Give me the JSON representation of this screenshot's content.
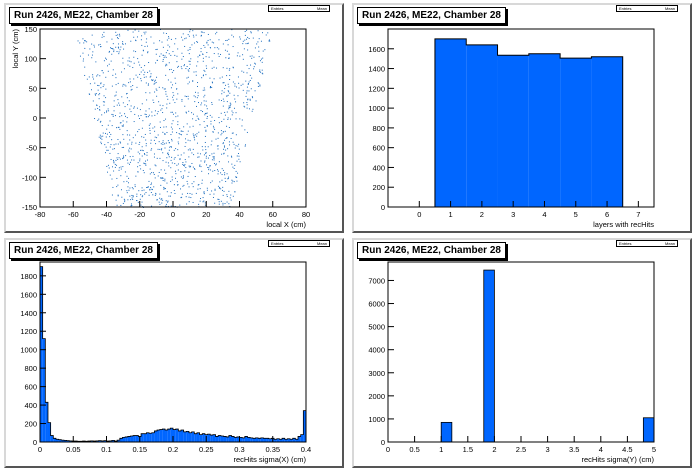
{
  "colors": {
    "fill": "#0066ff",
    "scatter": "#1f6fbf"
  },
  "charts": [
    {
      "title": "Run 2426, ME22, Chamber 28",
      "stat_left": "Entries",
      "stat_right": "Mean"
    },
    {
      "title": "Run 2426, ME22, Chamber 28",
      "stat_left": "Entries",
      "stat_right": "Mean"
    },
    {
      "title": "Run 2426, ME22, Chamber 28",
      "stat_left": "Entries",
      "stat_right": "Mean"
    },
    {
      "title": "Run 2426, ME22, Chamber 28",
      "stat_left": "Entries",
      "stat_right": "Mean"
    }
  ],
  "chart_data": [
    {
      "type": "scatter",
      "title": "Run 2426, ME22, Chamber 28",
      "xlabel": "local X (cm)",
      "ylabel": "local Y (cm)",
      "xlim": [
        -80,
        80
      ],
      "ylim": [
        -150,
        150
      ],
      "xticks": [
        -80,
        -60,
        -40,
        -20,
        0,
        20,
        40,
        60,
        80
      ],
      "yticks": [
        -150,
        -100,
        -50,
        0,
        50,
        100,
        150
      ],
      "region": {
        "y": [
          -150,
          150
        ],
        "xmin_at_ymin": -35,
        "xmax_at_ymin": 35,
        "xmin_at_ymax": -60,
        "xmax_at_ymax": 60
      },
      "points": 1400
    },
    {
      "type": "bar",
      "title": "Run 2426, ME22, Chamber 28",
      "xlabel": "layers with recHits",
      "ylabel": "",
      "xlim": [
        -1,
        7.5
      ],
      "ylim": [
        0,
        1800
      ],
      "xticks": [
        0,
        1,
        2,
        3,
        4,
        5,
        6,
        7
      ],
      "yticks": [
        0,
        200,
        400,
        600,
        800,
        1000,
        1200,
        1400,
        1600
      ],
      "categories": [
        1,
        2,
        3,
        4,
        5,
        6
      ],
      "values": [
        1700,
        1640,
        1535,
        1550,
        1505,
        1520
      ]
    },
    {
      "type": "bar",
      "title": "Run 2426, ME22, Chamber 28",
      "xlabel": "recHits sigma(X) (cm)",
      "ylabel": "",
      "xlim": [
        0,
        0.4
      ],
      "ylim": [
        0,
        1950
      ],
      "xticks": [
        0,
        0.05,
        0.1,
        0.15,
        0.2,
        0.25,
        0.3,
        0.35,
        0.4
      ],
      "yticks": [
        0,
        200,
        400,
        600,
        800,
        1000,
        1200,
        1400,
        1600,
        1800
      ],
      "bin_width": 0.004,
      "values": [
        1900,
        1120,
        430,
        210,
        70,
        40,
        30,
        25,
        20,
        18,
        15,
        12,
        10,
        10,
        8,
        8,
        10,
        8,
        10,
        12,
        10,
        12,
        15,
        12,
        15,
        10,
        12,
        18,
        10,
        20,
        40,
        50,
        55,
        60,
        65,
        70,
        70,
        60,
        90,
        90,
        100,
        95,
        100,
        120,
        130,
        135,
        140,
        130,
        140,
        150,
        135,
        140,
        120,
        130,
        110,
        115,
        100,
        110,
        90,
        100,
        80,
        90,
        80,
        85,
        75,
        80,
        60,
        70,
        65,
        60,
        55,
        70,
        60,
        50,
        55,
        50,
        45,
        60,
        50,
        45,
        40,
        45,
        40,
        45,
        40,
        40,
        35,
        40,
        30,
        35,
        30,
        40,
        30,
        35,
        30,
        40,
        30,
        60,
        80,
        340
      ]
    },
    {
      "type": "bar",
      "title": "Run 2426, ME22, Chamber 28",
      "xlabel": "recHits sigma(Y) (cm)",
      "ylabel": "",
      "xlim": [
        0,
        5
      ],
      "ylim": [
        0,
        7800
      ],
      "xticks": [
        0,
        0.5,
        1,
        1.5,
        2,
        2.5,
        3,
        3.5,
        4,
        4.5,
        5
      ],
      "yticks": [
        0,
        1000,
        2000,
        3000,
        4000,
        5000,
        6000,
        7000
      ],
      "bins": [
        {
          "x": [
            1.0,
            1.2
          ],
          "value": 850
        },
        {
          "x": [
            1.8,
            2.0
          ],
          "value": 7450
        },
        {
          "x": [
            4.8,
            5.0
          ],
          "value": 1050
        }
      ]
    }
  ]
}
